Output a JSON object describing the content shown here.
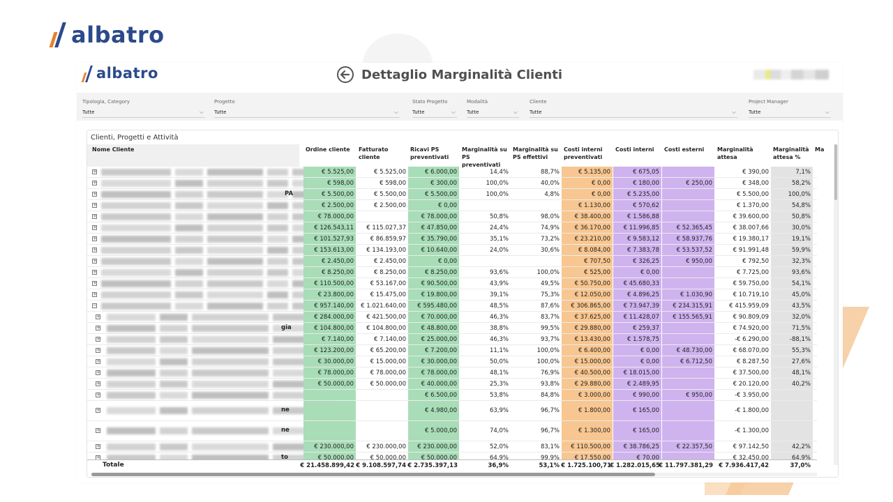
{
  "brand": {
    "name": "albatro",
    "mark_colors": [
      "#e8822a",
      "#2b4a8b"
    ]
  },
  "header": {
    "title": "Dettaglio Marginalità Clienti",
    "back_icon": "back-arrow-circle-icon"
  },
  "filters": [
    {
      "label": "Tipologia, Category",
      "value": "Tutte"
    },
    {
      "label": "Progetto",
      "value": "Tutte"
    },
    {
      "label": "Stato Progetto",
      "value": "Tutte"
    },
    {
      "label": "Modalità",
      "value": "Tutte"
    },
    {
      "label": "Cliente",
      "value": "Tutte"
    },
    {
      "label": "Project Manager",
      "value": "Tutte"
    }
  ],
  "table": {
    "title": "Clienti, Progetti e Attività",
    "headers": [
      "Nome Cliente",
      "Ordine cliente",
      "Fatturato cliente",
      "Ricavi PS preventivati",
      "Marginalità su PS preventivati",
      "Marginalità su PS effettivi",
      "Costi interni preventivati",
      "Costi interni",
      "Costi esterni",
      "Marginalità attesa",
      "Marginalità attesa %",
      "Ma"
    ],
    "column_colors": {
      "ordine": "#a8ddb8",
      "ricavi": "#a8ddb8",
      "costi_interni_prev": "#f8c690",
      "costi_interni": "#cfb3ef",
      "costi_esterni": "#cfb3ef",
      "marg_perc": "#e3e3e3"
    },
    "rows": [
      {
        "expander": "+",
        "name_tail": "",
        "values": [
          "€ 5.525,00",
          "€ 5.525,00",
          "€ 6.000,00",
          "14,4%",
          "88,7%",
          "€ 5.135,00",
          "€ 675,05",
          "",
          "€ 390,00",
          "7,1%"
        ]
      },
      {
        "expander": "+",
        "name_tail": "",
        "values": [
          "€ 598,00",
          "€ 598,00",
          "€ 300,00",
          "100,0%",
          "40,0%",
          "€ 0,00",
          "€ 180,00",
          "€ 250,00",
          "€ 348,00",
          "58,2%"
        ]
      },
      {
        "expander": "+",
        "name_tail": "PA",
        "values": [
          "€ 5.500,00",
          "€ 5.500,00",
          "€ 5.500,00",
          "100,0%",
          "4,8%",
          "€ 0,00",
          "€ 5.235,00",
          "",
          "€ 5.500,00",
          "100,0%"
        ]
      },
      {
        "expander": "+",
        "name_tail": "",
        "values": [
          "€ 2.500,00",
          "€ 2.500,00",
          "€ 0,00",
          "",
          "",
          "€ 1.130,00",
          "€ 570,62",
          "",
          "€ 1.370,00",
          "54,8%"
        ]
      },
      {
        "expander": "+",
        "name_tail": "",
        "values": [
          "€ 78.000,00",
          "",
          "€ 78.000,00",
          "50,8%",
          "98,0%",
          "€ 38.400,00",
          "€ 1.586,88",
          "",
          "€ 39.600,00",
          "50,8%"
        ]
      },
      {
        "expander": "+",
        "name_tail": "",
        "values": [
          "€ 126.543,11",
          "€ 115.027,37",
          "€ 47.850,00",
          "24,4%",
          "74,9%",
          "€ 36.170,00",
          "€ 11.996,85",
          "€ 52.365,45",
          "€ 38.007,66",
          "30,0%"
        ]
      },
      {
        "expander": "+",
        "name_tail": "",
        "values": [
          "€ 101.527,93",
          "€ 86.859,97",
          "€ 35.790,00",
          "35,1%",
          "73,2%",
          "€ 23.210,00",
          "€ 9.583,12",
          "€ 58.937,76",
          "€ 19.380,17",
          "19,1%"
        ]
      },
      {
        "expander": "+",
        "name_tail": "",
        "values": [
          "€ 153.613,00",
          "€ 134.193,00",
          "€ 10.640,00",
          "24,0%",
          "30,6%",
          "€ 8.084,00",
          "€ 7.383,78",
          "€ 53.537,52",
          "€ 91.991,48",
          "59,9%"
        ]
      },
      {
        "expander": "+",
        "name_tail": "",
        "values": [
          "€ 2.450,00",
          "€ 2.450,00",
          "€ 0,00",
          "",
          "",
          "€ 707,50",
          "€ 326,25",
          "€ 950,00",
          "€ 792,50",
          "32,3%"
        ]
      },
      {
        "expander": "+",
        "name_tail": "",
        "values": [
          "€ 8.250,00",
          "€ 8.250,00",
          "€ 8.250,00",
          "93,6%",
          "100,0%",
          "€ 525,00",
          "€ 0,00",
          "",
          "€ 7.725,00",
          "93,6%"
        ]
      },
      {
        "expander": "+",
        "name_tail": "",
        "values": [
          "€ 110.500,00",
          "€ 53.167,00",
          "€ 90.500,00",
          "43,9%",
          "49,5%",
          "€ 50.750,00",
          "€ 45.680,33",
          "",
          "€ 59.750,00",
          "54,1%"
        ]
      },
      {
        "expander": "+",
        "name_tail": "",
        "values": [
          "€ 23.800,00",
          "€ 15.475,00",
          "€ 19.800,00",
          "39,1%",
          "75,3%",
          "€ 12.050,00",
          "€ 4.896,25",
          "€ 1.030,90",
          "€ 10.719,10",
          "45,0%"
        ]
      },
      {
        "expander": "−",
        "name_tail": "",
        "values": [
          "€ 957.140,00",
          "€ 1.021.640,00",
          "€ 595.480,00",
          "48,5%",
          "87,6%",
          "€ 306.865,00",
          "€ 73.947,39",
          "€ 234.315,91",
          "€ 415.959,09",
          "43,5%"
        ]
      },
      {
        "expander": "+",
        "name_tail": "",
        "values": [
          "€ 284.000,00",
          "€ 421.500,00",
          "€ 70.000,00",
          "46,3%",
          "83,7%",
          "€ 37.625,00",
          "€ 11.428,07",
          "€ 155.565,91",
          "€ 90.809,09",
          "32,0%"
        ]
      },
      {
        "expander": "+",
        "name_tail": "gia",
        "values": [
          "€ 104.800,00",
          "€ 104.800,00",
          "€ 48.800,00",
          "38,8%",
          "99,5%",
          "€ 29.880,00",
          "€ 259,37",
          "",
          "€ 74.920,00",
          "71,5%"
        ]
      },
      {
        "expander": "+",
        "name_tail": "",
        "values": [
          "€ 7.140,00",
          "€ 7.140,00",
          "€ 25.000,00",
          "46,3%",
          "93,7%",
          "€ 13.430,00",
          "€ 1.578,75",
          "",
          "-€ 6.290,00",
          "-88,1%"
        ]
      },
      {
        "expander": "+",
        "name_tail": "",
        "values": [
          "€ 123.200,00",
          "€ 65.200,00",
          "€ 7.200,00",
          "11,1%",
          "100,0%",
          "€ 6.400,00",
          "€ 0,00",
          "€ 48.730,00",
          "€ 68.070,00",
          "55,3%"
        ]
      },
      {
        "expander": "+",
        "name_tail": "",
        "values": [
          "€ 30.000,00",
          "€ 15.000,00",
          "€ 30.000,00",
          "50,0%",
          "100,0%",
          "€ 15.000,00",
          "€ 0,00",
          "€ 6.712,50",
          "€ 8.287,50",
          "27,6%"
        ]
      },
      {
        "expander": "+",
        "name_tail": "",
        "values": [
          "€ 78.000,00",
          "€ 78.000,00",
          "€ 78.000,00",
          "48,1%",
          "76,9%",
          "€ 40.500,00",
          "€ 18.015,00",
          "",
          "€ 37.500,00",
          "48,1%"
        ]
      },
      {
        "expander": "+",
        "name_tail": "",
        "values": [
          "€ 50.000,00",
          "€ 50.000,00",
          "€ 40.000,00",
          "25,3%",
          "93,8%",
          "€ 29.880,00",
          "€ 2.489,95",
          "",
          "€ 20.120,00",
          "40,2%"
        ]
      },
      {
        "expander": "+",
        "name_tail": "",
        "values": [
          "",
          "",
          "€ 6.500,00",
          "53,8%",
          "84,8%",
          "€ 3.000,00",
          "€ 990,00",
          "€ 950,00",
          "-€ 3.950,00",
          ""
        ]
      },
      {
        "expander": "+",
        "name_tail": "ne",
        "values": [
          "",
          "",
          "€ 4.980,00",
          "63,9%",
          "96,7%",
          "€ 1.800,00",
          "€ 165,00",
          "",
          "-€ 1.800,00",
          ""
        ]
      },
      {
        "expander": "+",
        "name_tail": "ne",
        "values": [
          "",
          "",
          "€ 5.000,00",
          "74,0%",
          "96,7%",
          "€ 1.300,00",
          "€ 165,00",
          "",
          "-€ 1.300,00",
          ""
        ]
      },
      {
        "expander": "+",
        "name_tail": "",
        "values": [
          "€ 230.000,00",
          "€ 230.000,00",
          "€ 230.000,00",
          "52,0%",
          "83,1%",
          "€ 110.500,00",
          "€ 38.786,25",
          "€ 22.357,50",
          "€ 97.142,50",
          "42,2%"
        ]
      },
      {
        "expander": "+",
        "name_tail": "to",
        "values": [
          "€ 50.000,00",
          "€ 50.000,00",
          "€ 50.000,00",
          "64,9%",
          "99,9%",
          "€ 17.550,00",
          "€ 70,00",
          "",
          "€ 32.450,00",
          "64,9%"
        ]
      }
    ],
    "total": {
      "label": "Totale",
      "values": [
        "€ 21.458.899,42",
        "€ 9.108.597,74",
        "€ 2.735.397,13",
        "36,9%",
        "53,1%",
        "€ 1.725.100,71",
        "€ 1.282.015,65",
        "€ 11.797.381,29",
        "€ 7.936.417,42",
        "37,0%"
      ]
    }
  }
}
